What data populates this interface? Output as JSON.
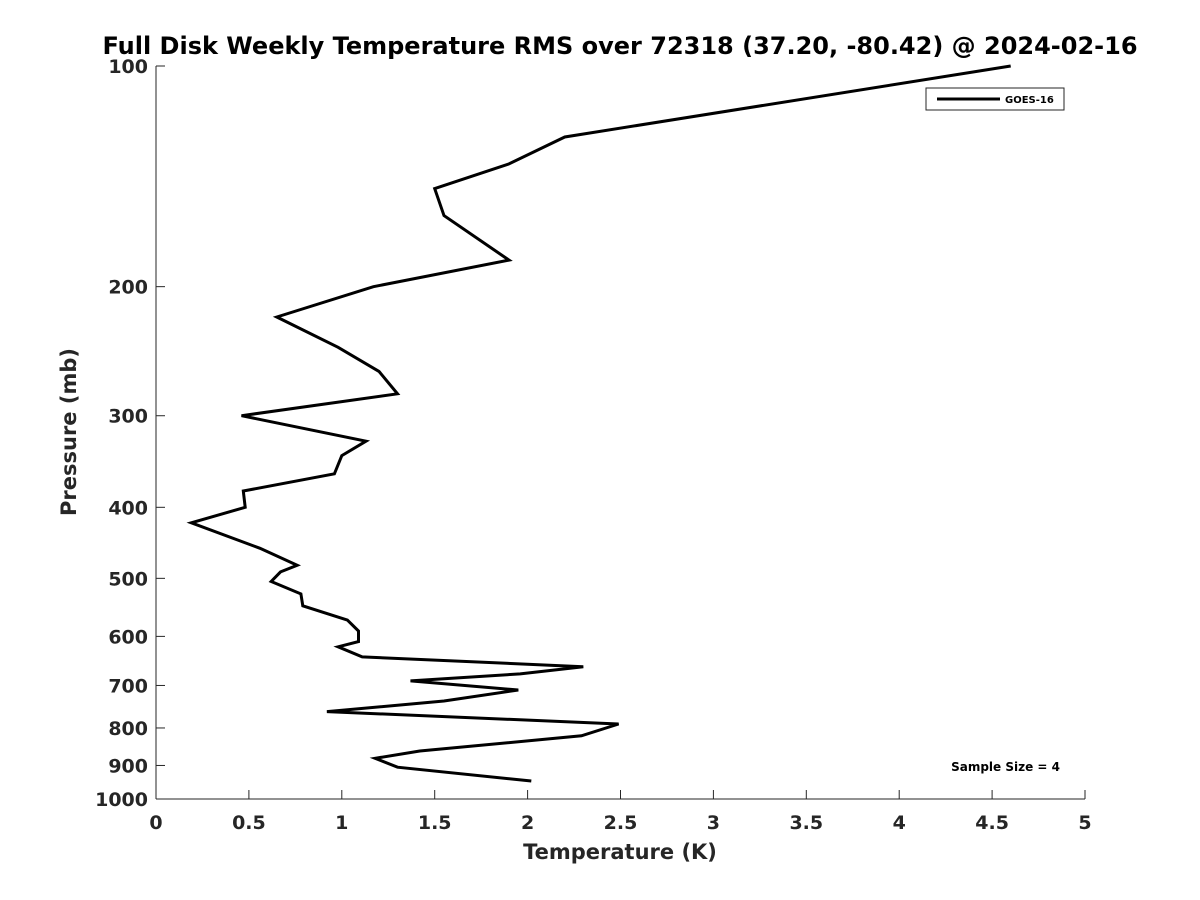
{
  "chart_data": {
    "type": "line",
    "title": "Full Disk Weekly Temperature RMS over 72318 (37.20, -80.42) @ 2024-02-16",
    "xlabel": "Temperature (K)",
    "ylabel": "Pressure (mb)",
    "xlim": [
      0,
      5
    ],
    "ylim": [
      100,
      1000
    ],
    "y_scale": "log",
    "y_reversed": true,
    "grid": false,
    "xticks": [
      0,
      0.5,
      1,
      1.5,
      2,
      2.5,
      3,
      3.5,
      4,
      4.5,
      5
    ],
    "xtick_labels": [
      "0",
      "0.5",
      "1",
      "1.5",
      "2",
      "2.5",
      "3",
      "3.5",
      "4",
      "4.5",
      "5"
    ],
    "yticks": [
      100,
      200,
      300,
      400,
      500,
      600,
      700,
      800,
      900,
      1000
    ],
    "ytick_labels": [
      "100",
      "200",
      "300",
      "400",
      "500",
      "600",
      "700",
      "800",
      "900",
      "1000"
    ],
    "legend": {
      "position": "top-right",
      "entries": [
        "GOES-16"
      ]
    },
    "annotation": "Sample Size = 4",
    "series": [
      {
        "name": "GOES-16",
        "color": "#000000",
        "x": [
          4.6,
          2.2,
          1.9,
          1.5,
          1.55,
          1.9,
          1.17,
          0.65,
          0.98,
          1.2,
          1.3,
          0.46,
          1.13,
          1.0,
          0.96,
          0.47,
          0.48,
          0.19,
          0.56,
          0.76,
          0.67,
          0.62,
          0.78,
          0.79,
          1.03,
          1.09,
          1.09,
          0.98,
          1.11,
          2.3,
          1.96,
          1.37,
          1.95,
          1.55,
          0.92,
          2.49,
          2.29,
          1.42,
          1.18,
          1.3,
          2.02
        ],
        "y": [
          100,
          125,
          136,
          147,
          160,
          184,
          200,
          220,
          242,
          261,
          280,
          300,
          325,
          340,
          360,
          380,
          400,
          420,
          455,
          480,
          490,
          505,
          525,
          545,
          570,
          590,
          610,
          620,
          640,
          660,
          675,
          690,
          710,
          735,
          760,
          790,
          820,
          860,
          880,
          905,
          945
        ]
      }
    ]
  }
}
